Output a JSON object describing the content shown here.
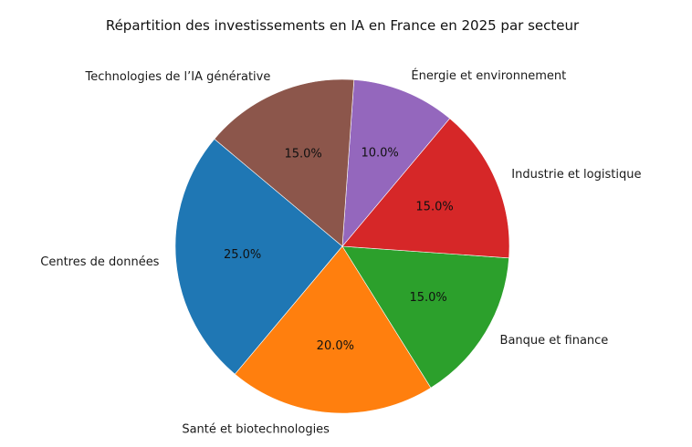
{
  "chart_data": {
    "type": "pie",
    "title": "Répartition des investissements en IA en France en 2025 par secteur",
    "slices": [
      {
        "label": "Centres de données",
        "value": 25.0,
        "pct_label": "25.0%",
        "color": "#1f77b4"
      },
      {
        "label": "Santé et biotechnologies",
        "value": 20.0,
        "pct_label": "20.0%",
        "color": "#ff7f0e"
      },
      {
        "label": "Banque et finance",
        "value": 15.0,
        "pct_label": "15.0%",
        "color": "#2ca02c"
      },
      {
        "label": "Industrie et logistique",
        "value": 15.0,
        "pct_label": "15.0%",
        "color": "#d62728"
      },
      {
        "label": "Énergie et environnement",
        "value": 10.0,
        "pct_label": "10.0%",
        "color": "#9467bd"
      },
      {
        "label": "Technologies de l’IA générative",
        "value": 15.0,
        "pct_label": "15.0%",
        "color": "#8c564b"
      }
    ],
    "start_angle_deg": 140,
    "direction": "counterclockwise",
    "edge_color": "#ffffff",
    "legend": "none"
  }
}
